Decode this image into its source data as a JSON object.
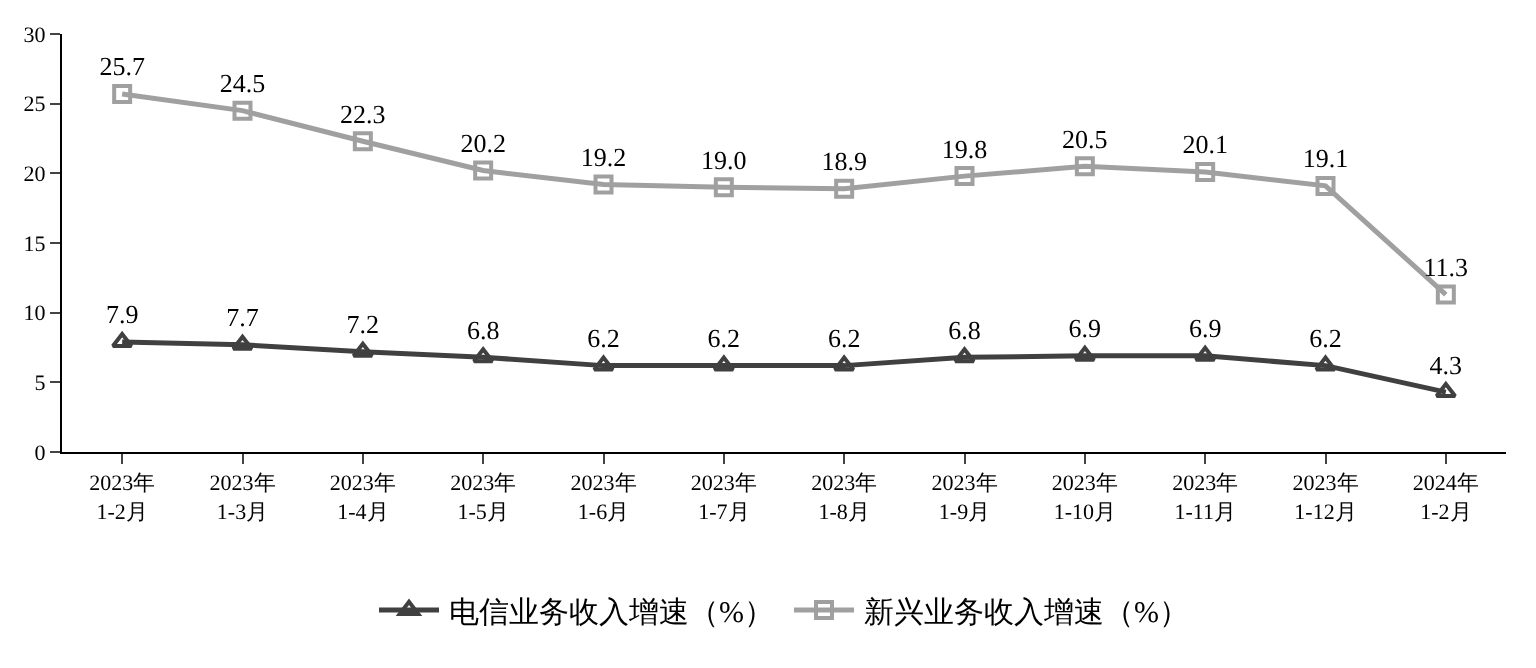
{
  "chart_data": {
    "type": "line",
    "categories": [
      "2023年\n1-2月",
      "2023年\n1-3月",
      "2023年\n1-4月",
      "2023年\n1-5月",
      "2023年\n1-6月",
      "2023年\n1-7月",
      "2023年\n1-8月",
      "2023年\n1-9月",
      "2023年\n1-10月",
      "2023年\n1-11月",
      "2023年\n1-12月",
      "2024年\n1-2月"
    ],
    "series": [
      {
        "name": "电信业务收入增速（%）",
        "color": "#404040",
        "marker": "triangle",
        "values": [
          7.9,
          7.7,
          7.2,
          6.8,
          6.2,
          6.2,
          6.2,
          6.8,
          6.9,
          6.9,
          6.2,
          4.3
        ],
        "value_labels": [
          "7.9",
          "7.7",
          "7.2",
          "6.8",
          "6.2",
          "6.2",
          "6.2",
          "6.8",
          "6.9",
          "6.9",
          "6.2",
          "4.3"
        ]
      },
      {
        "name": "新兴业务收入增速（%）",
        "color": "#a0a0a0",
        "marker": "square",
        "values": [
          25.7,
          24.5,
          22.3,
          20.2,
          19.2,
          19.0,
          18.9,
          19.8,
          20.5,
          20.1,
          19.1,
          11.3
        ],
        "value_labels": [
          "25.7",
          "24.5",
          "22.3",
          "20.2",
          "19.2",
          "19.0",
          "18.9",
          "19.8",
          "20.5",
          "20.1",
          "19.1",
          "11.3"
        ]
      }
    ],
    "ylim": [
      0,
      30
    ],
    "yticks": [
      0,
      5,
      10,
      15,
      20,
      25,
      30
    ],
    "legend": "bottom",
    "line_style": "solid"
  }
}
